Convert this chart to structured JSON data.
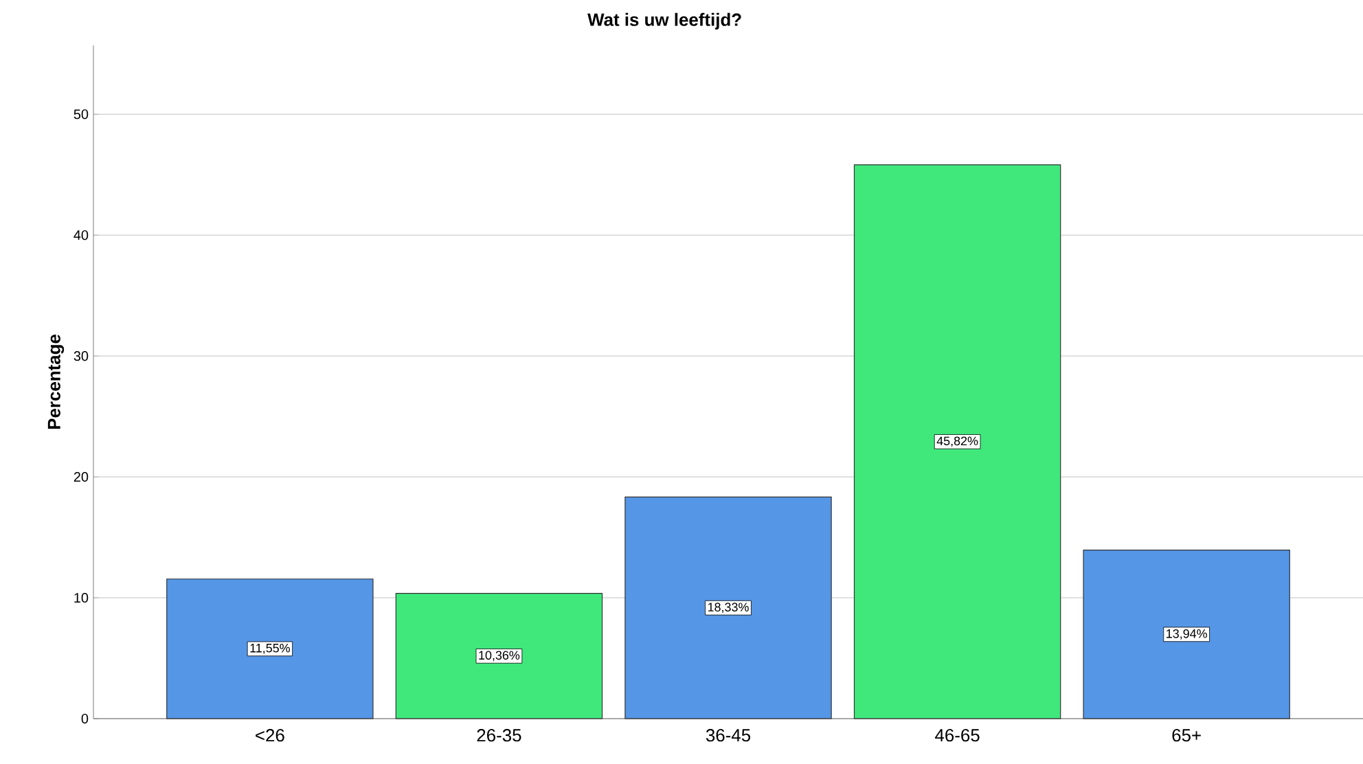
{
  "chart_data": {
    "type": "bar",
    "title": "Wat is uw leeftijd?",
    "ylabel": "Percentage",
    "categories": [
      "<26",
      "26-35",
      "36-45",
      "46-65",
      "65+"
    ],
    "values": [
      11.55,
      10.36,
      18.33,
      45.82,
      13.94
    ],
    "colors": [
      "#5596e6",
      "#40e87c",
      "#5596e6",
      "#40e87c",
      "#5596e6"
    ],
    "value_labels": [
      "11,55%",
      "10,36%",
      "18,33%",
      "45,82%",
      "13,94%"
    ],
    "ylim": [
      0,
      55.7
    ],
    "yticks": [
      0,
      10,
      20,
      30,
      40,
      50
    ],
    "grid": "y"
  }
}
